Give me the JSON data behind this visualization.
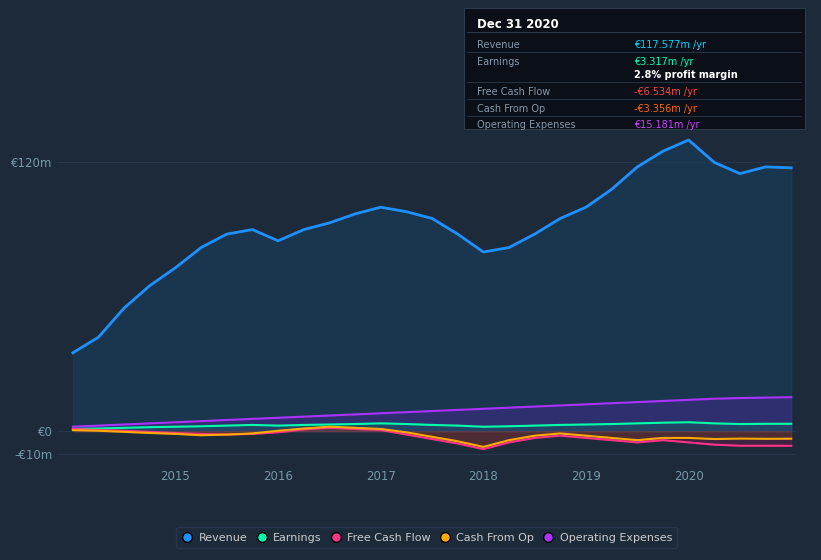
{
  "bg_color": "#1c2a3a",
  "plot_bg_color": "#1c2a3a",
  "grid_color": "#2a3a50",
  "title_box": {
    "date": "Dec 31 2020",
    "rows": [
      {
        "label": "Revenue",
        "value": "€117.577m /yr",
        "value_color": "#00d4ff"
      },
      {
        "label": "Earnings",
        "value": "€3.317m /yr",
        "value_color": "#00ffaa"
      },
      {
        "label": "",
        "value": "2.8% profit margin",
        "value_color": "#ffffff"
      },
      {
        "label": "Free Cash Flow",
        "value": "-€6.534m /yr",
        "value_color": "#ff4444"
      },
      {
        "label": "Cash From Op",
        "value": "-€3.356m /yr",
        "value_color": "#ff6600"
      },
      {
        "label": "Operating Expenses",
        "value": "€15.181m /yr",
        "value_color": "#cc44ff"
      }
    ]
  },
  "years": [
    2014.0,
    2014.25,
    2014.5,
    2014.75,
    2015.0,
    2015.25,
    2015.5,
    2015.75,
    2016.0,
    2016.25,
    2016.5,
    2016.75,
    2017.0,
    2017.25,
    2017.5,
    2017.75,
    2018.0,
    2018.25,
    2018.5,
    2018.75,
    2019.0,
    2019.25,
    2019.5,
    2019.75,
    2020.0,
    2020.25,
    2020.5,
    2020.75,
    2021.0
  ],
  "revenue": [
    35,
    42,
    55,
    65,
    73,
    82,
    88,
    90,
    85,
    90,
    93,
    97,
    100,
    98,
    95,
    88,
    80,
    82,
    88,
    95,
    100,
    108,
    118,
    125,
    130,
    120,
    115,
    118,
    117.577
  ],
  "earnings": [
    1.0,
    1.2,
    1.5,
    1.8,
    2.0,
    2.2,
    2.5,
    2.8,
    2.5,
    2.8,
    3.0,
    3.2,
    3.5,
    3.2,
    2.8,
    2.5,
    2.0,
    2.2,
    2.5,
    2.8,
    3.0,
    3.2,
    3.5,
    3.8,
    4.0,
    3.5,
    3.2,
    3.3,
    3.317
  ],
  "free_cash_flow": [
    1.0,
    0.5,
    0.2,
    -0.3,
    -0.8,
    -1.2,
    -1.5,
    -1.2,
    -0.5,
    0.8,
    1.5,
    1.0,
    0.5,
    -1.5,
    -3.5,
    -5.5,
    -8.0,
    -5.0,
    -3.0,
    -2.0,
    -3.0,
    -4.0,
    -5.0,
    -4.0,
    -5.0,
    -6.0,
    -6.5,
    -6.5,
    -6.534
  ],
  "cash_from_op": [
    0.5,
    0.2,
    -0.3,
    -0.8,
    -1.2,
    -1.8,
    -1.5,
    -1.0,
    0.2,
    1.2,
    2.0,
    1.5,
    1.0,
    -0.5,
    -2.5,
    -4.5,
    -7.0,
    -4.0,
    -2.0,
    -1.0,
    -2.0,
    -3.0,
    -4.0,
    -3.0,
    -3.0,
    -3.5,
    -3.3,
    -3.4,
    -3.356
  ],
  "op_expenses": [
    2.0,
    2.5,
    3.0,
    3.5,
    4.0,
    4.5,
    5.0,
    5.5,
    6.0,
    6.5,
    7.0,
    7.5,
    8.0,
    8.5,
    9.0,
    9.5,
    10.0,
    10.5,
    11.0,
    11.5,
    12.0,
    12.5,
    13.0,
    13.5,
    14.0,
    14.5,
    14.8,
    15.0,
    15.181
  ],
  "revenue_color": "#1e90ff",
  "earnings_color": "#00ffaa",
  "fcf_color": "#ff3388",
  "cfo_color": "#ffaa00",
  "opex_color": "#aa33ff",
  "ylim": [
    -15,
    135
  ],
  "ytick_vals": [
    -10,
    0,
    120
  ],
  "ytick_labels": [
    "-€10m",
    "€0",
    "€120m"
  ],
  "xtick_years": [
    2015,
    2016,
    2017,
    2018,
    2019,
    2020
  ],
  "legend_items": [
    {
      "label": "Revenue",
      "color": "#1e90ff"
    },
    {
      "label": "Earnings",
      "color": "#00ffaa"
    },
    {
      "label": "Free Cash Flow",
      "color": "#ff3388"
    },
    {
      "label": "Cash From Op",
      "color": "#ffaa00"
    },
    {
      "label": "Operating Expenses",
      "color": "#aa33ff"
    }
  ]
}
